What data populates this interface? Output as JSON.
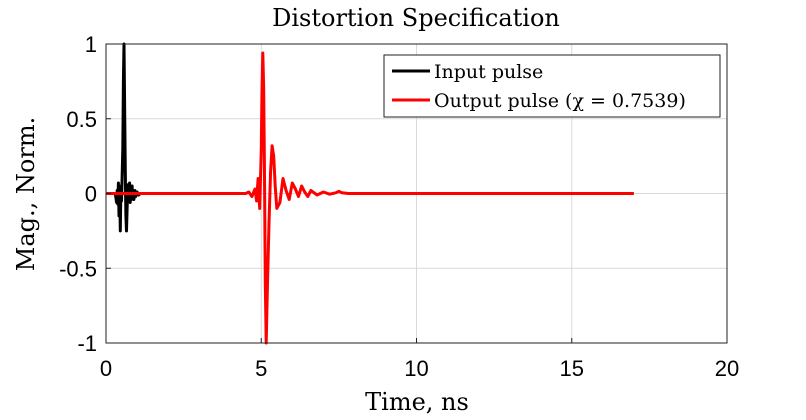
{
  "chart_data": {
    "type": "line",
    "title": "Distortion Specification",
    "xlabel": "Time, ns",
    "ylabel": "Mag., Norm.",
    "xlim": [
      0,
      20
    ],
    "ylim": [
      -1,
      1
    ],
    "xticks": [
      0,
      5,
      10,
      15,
      20
    ],
    "yticks": [
      -1,
      -0.5,
      0,
      0.5,
      1
    ],
    "xtick_labels": [
      "0",
      "5",
      "10",
      "15",
      "20"
    ],
    "ytick_labels": [
      "-1",
      "-0.5",
      "0",
      "0.5",
      "1"
    ],
    "grid": true,
    "legend_position": "top-right",
    "series": [
      {
        "name": "Input pulse",
        "color": "#000000",
        "x": [
          0.0,
          0.3,
          0.34,
          0.36,
          0.38,
          0.4,
          0.42,
          0.44,
          0.46,
          0.48,
          0.5,
          0.52,
          0.54,
          0.56,
          0.58,
          0.6,
          0.62,
          0.64,
          0.66,
          0.68,
          0.7,
          0.72,
          0.74,
          0.76,
          0.78,
          0.8,
          0.82,
          0.84,
          0.86,
          0.88,
          0.9,
          0.93,
          0.96,
          1.0,
          1.05,
          1.1,
          1.2
        ],
        "y": [
          0.0,
          0.0,
          -0.06,
          0.02,
          -0.07,
          0.07,
          -0.15,
          0.04,
          -0.25,
          0.05,
          -0.05,
          0.1,
          0.3,
          0.75,
          1.0,
          0.6,
          0.15,
          -0.15,
          -0.25,
          -0.1,
          0.02,
          0.06,
          -0.04,
          0.07,
          -0.06,
          0.04,
          -0.04,
          0.05,
          -0.03,
          0.02,
          -0.04,
          0.02,
          -0.02,
          0.01,
          -0.01,
          0.0,
          0.0
        ]
      },
      {
        "name": "Output pulse (χ = 0.7539)",
        "color": "#ff0000",
        "x": [
          0.0,
          4.5,
          4.6,
          4.7,
          4.8,
          4.85,
          4.9,
          4.95,
          5.0,
          5.02,
          5.05,
          5.08,
          5.1,
          5.13,
          5.16,
          5.2,
          5.25,
          5.3,
          5.35,
          5.4,
          5.45,
          5.5,
          5.6,
          5.7,
          5.8,
          5.9,
          6.0,
          6.1,
          6.2,
          6.3,
          6.4,
          6.5,
          6.6,
          6.8,
          7.0,
          7.2,
          7.4,
          7.5,
          7.6,
          7.8,
          8.0,
          10.0,
          12.0,
          17.0
        ],
        "y": [
          0.0,
          0.0,
          0.01,
          -0.02,
          0.03,
          -0.05,
          0.1,
          -0.1,
          0.3,
          0.65,
          0.94,
          0.7,
          0.2,
          -0.6,
          -1.0,
          -0.6,
          -0.2,
          0.15,
          0.32,
          0.25,
          0.05,
          -0.1,
          -0.06,
          0.1,
          0.02,
          -0.04,
          0.07,
          0.03,
          -0.02,
          0.05,
          0.01,
          -0.02,
          0.02,
          -0.01,
          0.01,
          -0.005,
          0.005,
          0.015,
          0.005,
          0.0,
          0.0,
          0.0,
          0.0,
          0.0
        ]
      }
    ]
  }
}
